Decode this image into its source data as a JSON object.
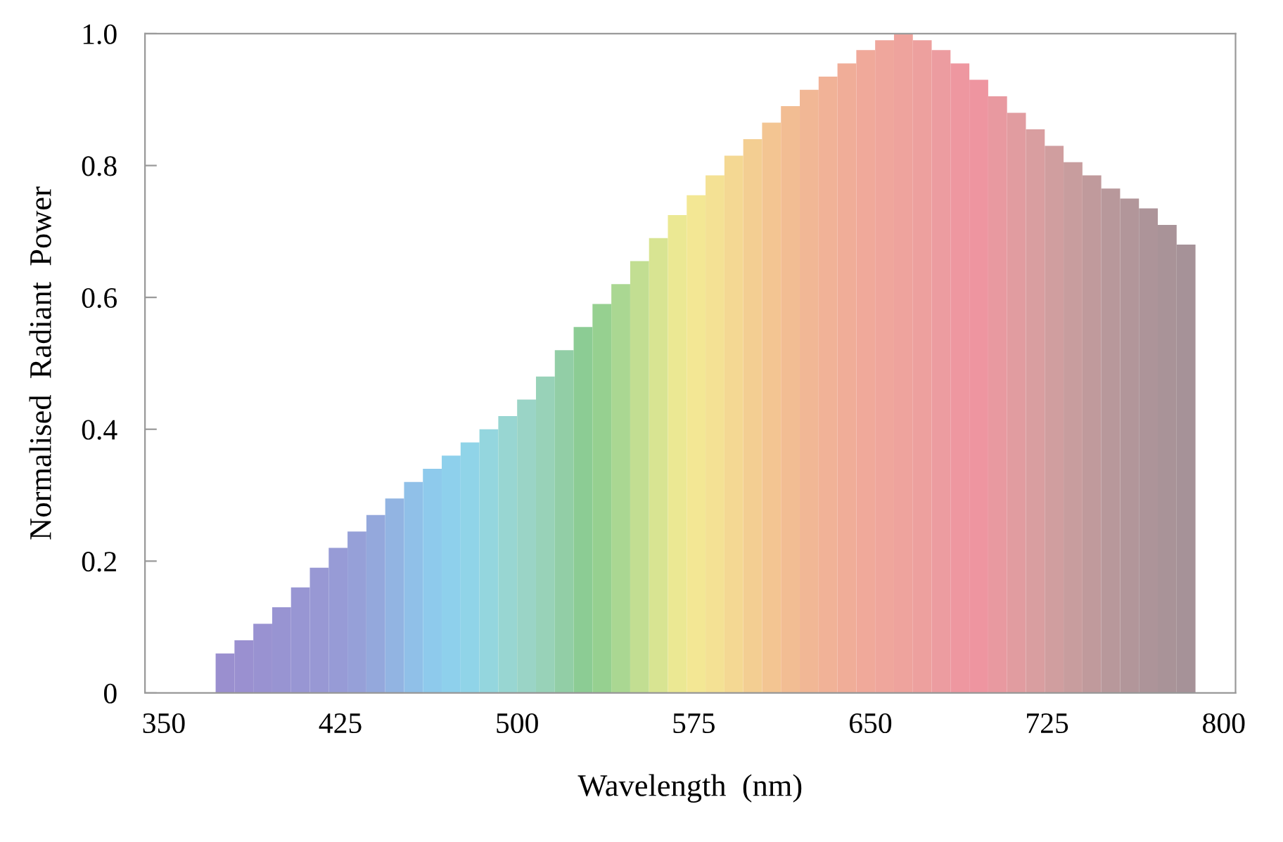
{
  "chart_data": {
    "type": "bar",
    "xlabel": "Wavelength  (nm)",
    "ylabel": "Normalised  Radiant  Power",
    "x": [
      376,
      384,
      392,
      400,
      408,
      416,
      424,
      432,
      440,
      448,
      456,
      464,
      472,
      480,
      488,
      496,
      504,
      512,
      520,
      528,
      536,
      544,
      552,
      560,
      568,
      576,
      584,
      592,
      600,
      608,
      616,
      624,
      632,
      640,
      648,
      656,
      664,
      672,
      680,
      688,
      696,
      704,
      712,
      720,
      728,
      736,
      744,
      752,
      760,
      768,
      776,
      784
    ],
    "values": [
      0.06,
      0.08,
      0.105,
      0.13,
      0.16,
      0.19,
      0.22,
      0.245,
      0.27,
      0.295,
      0.32,
      0.34,
      0.36,
      0.38,
      0.4,
      0.42,
      0.445,
      0.48,
      0.52,
      0.555,
      0.59,
      0.62,
      0.655,
      0.69,
      0.725,
      0.755,
      0.785,
      0.815,
      0.84,
      0.865,
      0.89,
      0.915,
      0.935,
      0.955,
      0.975,
      0.99,
      1.0,
      0.99,
      0.975,
      0.955,
      0.93,
      0.905,
      0.88,
      0.855,
      0.83,
      0.805,
      0.785,
      0.765,
      0.75,
      0.735,
      0.71,
      0.68
    ],
    "colors": [
      "#9a8fcf",
      "#9a90d0",
      "#9992d1",
      "#9894d2",
      "#9896d3",
      "#9898d4",
      "#979bd6",
      "#96a0d8",
      "#94a8dc",
      "#92b4e2",
      "#90c0e8",
      "#8ecaec",
      "#8ed0ec",
      "#90d4e8",
      "#94d6de",
      "#98d6d2",
      "#9ad4c6",
      "#98d2b8",
      "#92cea6",
      "#8ccc94",
      "#96d090",
      "#aad792",
      "#c2de92",
      "#d8e492",
      "#ebe893",
      "#f3e794",
      "#f4e194",
      "#f4d893",
      "#f3ce92",
      "#f3c592",
      "#f2bd93",
      "#f1b795",
      "#f1b297",
      "#f0ad98",
      "#f0a99a",
      "#efa69c",
      "#eea39d",
      "#eda09e",
      "#ec9ca0",
      "#ee97a0",
      "#ee95a0",
      "#e899a0",
      "#e19ca0",
      "#d99ea0",
      "#d09e9f",
      "#c89d9e",
      "#c09a9c",
      "#b8989b",
      "#b2969a",
      "#ad9499",
      "#a99398",
      "#a69298"
    ],
    "xlim": [
      342,
      805
    ],
    "xticks": [
      350,
      425,
      500,
      575,
      650,
      725,
      800
    ],
    "ylim": [
      0,
      1.0
    ],
    "yticks": [
      0,
      0.2,
      0.4,
      0.6,
      0.8,
      {
        "value": 1.0,
        "label": "1.0"
      }
    ],
    "grid": false,
    "legend": false
  }
}
